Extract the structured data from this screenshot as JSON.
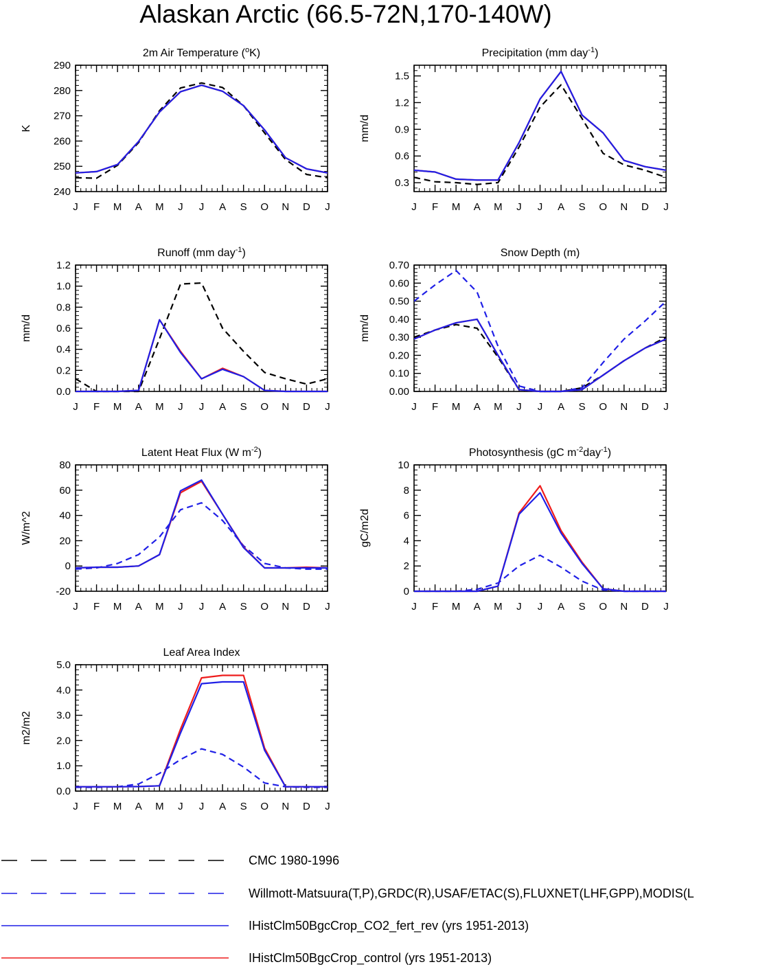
{
  "title": "Alaskan Arctic (66.5-72N,170-140W)",
  "months": [
    "J",
    "F",
    "M",
    "A",
    "M",
    "J",
    "J",
    "A",
    "S",
    "O",
    "N",
    "D",
    "J"
  ],
  "colors": {
    "cmc": "#000000",
    "obs": "#1f1fe6",
    "co2": "#1f1fe6",
    "control": "#ee1c1c"
  },
  "legend": [
    {
      "key": "cmc",
      "label": "CMC 1980-1996",
      "style": "dashed"
    },
    {
      "key": "obs",
      "label": "Willmott-Matsuura(T,P),GRDC(R),USAF/ETAC(S),FLUXNET(LHF,GPP),MODIS(L",
      "style": "dashed"
    },
    {
      "key": "co2",
      "label": "IHistClm50BgcCrop_CO2_fert_rev (yrs 1951-2013)",
      "style": "solid"
    },
    {
      "key": "control",
      "label": "IHistClm50BgcCrop_control (yrs 1951-2013)",
      "style": "solid"
    }
  ],
  "chart_data": [
    {
      "type": "line",
      "title": "2m Air Temperature (°K)",
      "title_parts": [
        {
          "t": "2m Air Temperature ("
        },
        {
          "t": "o",
          "sup": true
        },
        {
          "t": "K)"
        }
      ],
      "ylabel": "K",
      "ylim": [
        240,
        290
      ],
      "yticks": [
        "240",
        "250",
        "260",
        "270",
        "280",
        "290"
      ],
      "x": [
        "J",
        "F",
        "M",
        "A",
        "M",
        "J",
        "J",
        "A",
        "S",
        "O",
        "N",
        "D",
        "J"
      ],
      "series": [
        {
          "key": "cmc",
          "dash": true,
          "values": [
            245.5,
            245.3,
            250.4,
            259.4,
            272.0,
            281.0,
            283.0,
            281.2,
            274.0,
            263.2,
            252.7,
            246.8,
            245.5
          ]
        },
        {
          "key": "control",
          "dash": false,
          "values": [
            247.4,
            247.9,
            250.7,
            259.8,
            271.5,
            279.5,
            282.1,
            279.7,
            274.0,
            264.4,
            253.4,
            249.0,
            247.4
          ]
        },
        {
          "key": "co2",
          "dash": false,
          "values": [
            247.4,
            247.9,
            250.7,
            259.8,
            271.5,
            279.5,
            282.1,
            279.7,
            274.0,
            264.4,
            253.4,
            249.0,
            247.4
          ]
        }
      ]
    },
    {
      "type": "line",
      "title": "Precipitation (mm day-1)",
      "title_parts": [
        {
          "t": "Precipitation (mm day"
        },
        {
          "t": "-1",
          "sup": true
        },
        {
          "t": ")"
        }
      ],
      "ylabel": "mm/d",
      "ylim": [
        0.2,
        1.62
      ],
      "yticks": [
        "0.3",
        "0.6",
        "0.9",
        "1.2",
        "1.5"
      ],
      "ytick_values": [
        0.3,
        0.6,
        0.9,
        1.2,
        1.5
      ],
      "x": [
        "J",
        "F",
        "M",
        "A",
        "M",
        "J",
        "J",
        "A",
        "S",
        "O",
        "N",
        "D",
        "J"
      ],
      "series": [
        {
          "key": "cmc",
          "dash": true,
          "values": [
            0.36,
            0.31,
            0.3,
            0.28,
            0.3,
            0.7,
            1.15,
            1.4,
            1.02,
            0.63,
            0.5,
            0.44,
            0.36
          ]
        },
        {
          "key": "control",
          "dash": false,
          "values": [
            0.44,
            0.42,
            0.34,
            0.33,
            0.33,
            0.75,
            1.24,
            1.55,
            1.06,
            0.86,
            0.55,
            0.48,
            0.44
          ]
        },
        {
          "key": "co2",
          "dash": false,
          "values": [
            0.44,
            0.42,
            0.34,
            0.33,
            0.33,
            0.75,
            1.24,
            1.55,
            1.06,
            0.86,
            0.55,
            0.48,
            0.44
          ]
        }
      ]
    },
    {
      "type": "line",
      "title": "Runoff (mm day-1)",
      "title_parts": [
        {
          "t": "Runoff (mm day"
        },
        {
          "t": "-1",
          "sup": true
        },
        {
          "t": ")"
        }
      ],
      "ylabel": "mm/d",
      "ylim": [
        0,
        1.2
      ],
      "yticks": [
        "0.0",
        "0.2",
        "0.4",
        "0.6",
        "0.8",
        "1.0",
        "1.2"
      ],
      "x": [
        "J",
        "F",
        "M",
        "A",
        "M",
        "J",
        "J",
        "A",
        "S",
        "O",
        "N",
        "D",
        "J"
      ],
      "series": [
        {
          "key": "cmc",
          "dash": true,
          "values": [
            0.12,
            0.0,
            0.0,
            0.0,
            0.5,
            1.02,
            1.03,
            0.6,
            0.38,
            0.18,
            0.12,
            0.07,
            0.12
          ]
        },
        {
          "key": "control",
          "dash": false,
          "values": [
            0.0,
            0.0,
            0.0,
            0.01,
            0.68,
            0.38,
            0.12,
            0.22,
            0.14,
            0.01,
            0.0,
            0.0,
            0.0
          ]
        },
        {
          "key": "co2",
          "dash": false,
          "values": [
            0.0,
            0.0,
            0.0,
            0.01,
            0.68,
            0.37,
            0.12,
            0.21,
            0.14,
            0.01,
            0.0,
            0.0,
            0.0
          ]
        }
      ]
    },
    {
      "type": "line",
      "title": "Snow Depth (m)",
      "title_parts": [
        {
          "t": "Snow Depth (m)"
        }
      ],
      "ylabel": "mm/d",
      "ylim": [
        0,
        0.7
      ],
      "yticks": [
        "0.00",
        "0.10",
        "0.20",
        "0.30",
        "0.40",
        "0.50",
        "0.60",
        "0.70"
      ],
      "x": [
        "J",
        "F",
        "M",
        "A",
        "M",
        "J",
        "J",
        "A",
        "S",
        "O",
        "N",
        "D",
        "J"
      ],
      "series": [
        {
          "key": "cmc",
          "dash": true,
          "values": [
            0.3,
            0.34,
            0.37,
            0.35,
            0.19,
            0.01,
            0.0,
            0.0,
            0.02,
            0.09,
            0.17,
            0.24,
            0.3
          ]
        },
        {
          "key": "obs",
          "dash": true,
          "values": [
            0.5,
            0.59,
            0.67,
            0.55,
            0.25,
            0.03,
            0.0,
            0.0,
            0.02,
            0.16,
            0.29,
            0.39,
            0.5
          ]
        },
        {
          "key": "control",
          "dash": false,
          "values": [
            0.29,
            0.34,
            0.38,
            0.4,
            0.2,
            0.01,
            0.0,
            0.0,
            0.01,
            0.09,
            0.17,
            0.24,
            0.29
          ]
        },
        {
          "key": "co2",
          "dash": false,
          "values": [
            0.29,
            0.34,
            0.38,
            0.4,
            0.2,
            0.01,
            0.0,
            0.0,
            0.01,
            0.09,
            0.17,
            0.24,
            0.29
          ]
        }
      ]
    },
    {
      "type": "line",
      "title": "Latent Heat Flux (W m-2)",
      "title_parts": [
        {
          "t": "Latent Heat Flux (W m"
        },
        {
          "t": "-2",
          "sup": true
        },
        {
          "t": ")"
        }
      ],
      "ylabel": "W/m^2",
      "ylim": [
        -20,
        80
      ],
      "yticks": [
        "-20",
        "0",
        "20",
        "40",
        "60",
        "80"
      ],
      "x": [
        "J",
        "F",
        "M",
        "A",
        "M",
        "J",
        "J",
        "A",
        "S",
        "O",
        "N",
        "D",
        "J"
      ],
      "series": [
        {
          "key": "obs",
          "dash": true,
          "values": [
            -2.5,
            -1.5,
            2.0,
            9.0,
            23.0,
            44.5,
            50.0,
            36.0,
            16.0,
            2.0,
            -1.5,
            -2.5,
            -2.5
          ]
        },
        {
          "key": "control",
          "dash": false,
          "values": [
            -1.5,
            -1.0,
            -1.0,
            0.0,
            9.0,
            58.0,
            67.0,
            41.0,
            15.0,
            -1.5,
            -1.5,
            -1.0,
            -1.5
          ]
        },
        {
          "key": "co2",
          "dash": false,
          "values": [
            -1.5,
            -1.0,
            -1.0,
            0.0,
            9.0,
            59.5,
            68.0,
            41.0,
            14.5,
            -1.5,
            -1.5,
            -1.5,
            -1.5
          ]
        }
      ]
    },
    {
      "type": "line",
      "title": "Photosynthesis (gC m-2day-1)",
      "title_parts": [
        {
          "t": "Photosynthesis (gC m"
        },
        {
          "t": "-2",
          "sup": true
        },
        {
          "t": "day"
        },
        {
          "t": "-1",
          "sup": true
        },
        {
          "t": ")"
        }
      ],
      "ylabel": "gC/m2d",
      "ylim": [
        0,
        10
      ],
      "yticks": [
        "0",
        "2",
        "4",
        "6",
        "8",
        "10"
      ],
      "x": [
        "J",
        "F",
        "M",
        "A",
        "M",
        "J",
        "J",
        "A",
        "S",
        "O",
        "N",
        "D",
        "J"
      ],
      "series": [
        {
          "key": "obs",
          "dash": true,
          "values": [
            0.0,
            0.0,
            0.0,
            0.15,
            0.65,
            2.0,
            2.85,
            1.9,
            0.8,
            0.1,
            0.0,
            0.0,
            0.0
          ]
        },
        {
          "key": "control",
          "dash": false,
          "values": [
            0.0,
            0.0,
            0.0,
            0.0,
            0.4,
            6.2,
            8.35,
            4.8,
            2.3,
            0.2,
            0.0,
            0.0,
            0.0
          ]
        },
        {
          "key": "co2",
          "dash": false,
          "values": [
            0.0,
            0.0,
            0.0,
            0.0,
            0.4,
            6.1,
            7.8,
            4.6,
            2.2,
            0.2,
            0.0,
            0.0,
            0.0
          ]
        }
      ]
    },
    {
      "type": "line",
      "title": "Leaf Area Index",
      "title_parts": [
        {
          "t": "Leaf Area Index"
        }
      ],
      "ylabel": "m2/m2",
      "ylim": [
        0,
        5
      ],
      "yticks": [
        "0.0",
        "1.0",
        "2.0",
        "3.0",
        "4.0",
        "5.0"
      ],
      "x": [
        "J",
        "F",
        "M",
        "A",
        "M",
        "J",
        "J",
        "A",
        "S",
        "O",
        "N",
        "D",
        "J"
      ],
      "series": [
        {
          "key": "obs",
          "dash": true,
          "values": [
            0.15,
            0.15,
            0.17,
            0.28,
            0.7,
            1.25,
            1.67,
            1.45,
            0.95,
            0.32,
            0.17,
            0.15,
            0.15
          ]
        },
        {
          "key": "control",
          "dash": false,
          "values": [
            0.17,
            0.17,
            0.17,
            0.18,
            0.21,
            2.45,
            4.48,
            4.58,
            4.58,
            1.7,
            0.17,
            0.17,
            0.17
          ]
        },
        {
          "key": "co2",
          "dash": false,
          "values": [
            0.17,
            0.17,
            0.17,
            0.18,
            0.21,
            2.3,
            4.25,
            4.32,
            4.32,
            1.62,
            0.17,
            0.17,
            0.17
          ]
        }
      ]
    }
  ]
}
